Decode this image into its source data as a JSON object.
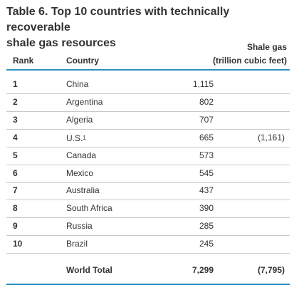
{
  "title": {
    "line1": "Table 6. Top 10 countries with technically recoverable",
    "line2": "shale gas resources"
  },
  "headers": {
    "rank": "Rank",
    "country": "Country",
    "shale_line1": "Shale gas",
    "shale_line2": "(trillion cubic feet)"
  },
  "rows": [
    {
      "rank": "1",
      "country": "China",
      "sup": "",
      "value": "1,115",
      "alt": ""
    },
    {
      "rank": "2",
      "country": "Argentina",
      "sup": "",
      "value": "802",
      "alt": ""
    },
    {
      "rank": "3",
      "country": "Algeria",
      "sup": "",
      "value": "707",
      "alt": ""
    },
    {
      "rank": "4",
      "country": "U.S.",
      "sup": "1",
      "value": "665",
      "alt": "(1,161)"
    },
    {
      "rank": "5",
      "country": "Canada",
      "sup": "",
      "value": "573",
      "alt": ""
    },
    {
      "rank": "6",
      "country": "Mexico",
      "sup": "",
      "value": "545",
      "alt": ""
    },
    {
      "rank": "7",
      "country": "Australia",
      "sup": "",
      "value": "437",
      "alt": ""
    },
    {
      "rank": "8",
      "country": "South Africa",
      "sup": "",
      "value": "390",
      "alt": ""
    },
    {
      "rank": "9",
      "country": "Russia",
      "sup": "",
      "value": "285",
      "alt": ""
    },
    {
      "rank": "10",
      "country": "Brazil",
      "sup": "",
      "value": "245",
      "alt": ""
    }
  ],
  "total": {
    "label": "World Total",
    "value": "7,299",
    "alt": "(7,795)"
  },
  "colors": {
    "accent_rule": "#2a8fc4",
    "row_rule": "#c9c9c9",
    "text": "#333333"
  }
}
